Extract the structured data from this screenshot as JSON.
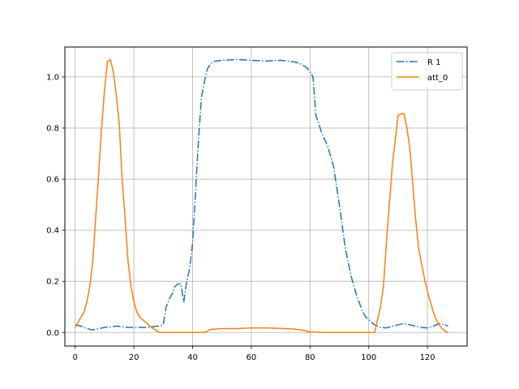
{
  "chart_data": {
    "type": "line",
    "title": "",
    "xlabel": "",
    "ylabel": "",
    "xlim": [
      -3.5,
      133.5
    ],
    "ylim": [
      -0.053,
      1.117
    ],
    "xticks": [
      0,
      20,
      40,
      60,
      80,
      100,
      120
    ],
    "xtick_labels": [
      "0",
      "20",
      "40",
      "60",
      "80",
      "100",
      "120"
    ],
    "yticks": [
      0.0,
      0.2,
      0.4,
      0.6,
      0.8,
      1.0
    ],
    "ytick_labels": [
      "0.0",
      "0.2",
      "0.4",
      "0.6",
      "0.8",
      "1.0"
    ],
    "grid": true,
    "legend_position": "top-right",
    "series": [
      {
        "name": "R 1",
        "color": "#1f77b4",
        "style": "dashdot",
        "x": [
          0,
          2,
          4,
          6,
          8,
          10,
          12,
          14,
          16,
          18,
          20,
          22,
          24,
          26,
          28,
          29,
          30,
          31,
          32,
          33,
          34,
          35,
          36,
          37,
          38,
          39,
          40,
          41,
          42,
          43,
          44,
          45,
          46,
          47,
          48,
          50,
          55,
          60,
          65,
          70,
          75,
          77,
          79,
          80,
          81,
          82,
          84,
          86,
          88,
          90,
          92,
          94,
          96,
          98,
          99,
          100,
          102,
          104,
          106,
          108,
          110,
          112,
          114,
          116,
          118,
          120,
          122,
          124,
          126,
          127
        ],
        "y": [
          0.03,
          0.025,
          0.015,
          0.01,
          0.015,
          0.02,
          0.022,
          0.025,
          0.023,
          0.02,
          0.02,
          0.02,
          0.02,
          0.022,
          0.025,
          0.025,
          0.03,
          0.1,
          0.13,
          0.15,
          0.18,
          0.19,
          0.19,
          0.12,
          0.2,
          0.25,
          0.35,
          0.55,
          0.75,
          0.92,
          0.98,
          1.03,
          1.05,
          1.06,
          1.062,
          1.065,
          1.068,
          1.065,
          1.062,
          1.065,
          1.058,
          1.05,
          1.035,
          1.02,
          1.0,
          0.85,
          0.78,
          0.73,
          0.65,
          0.5,
          0.33,
          0.22,
          0.14,
          0.08,
          0.06,
          0.05,
          0.03,
          0.02,
          0.018,
          0.025,
          0.03,
          0.035,
          0.03,
          0.025,
          0.02,
          0.018,
          0.025,
          0.035,
          0.03,
          0.025
        ]
      },
      {
        "name": "att_0",
        "color": "#ff7f0e",
        "style": "solid",
        "x": [
          0,
          1,
          2,
          3,
          4,
          5,
          6,
          7,
          8,
          9,
          10,
          11,
          12,
          13,
          14,
          15,
          16,
          17,
          18,
          19,
          20,
          21,
          22,
          24,
          26,
          28,
          29,
          30,
          35,
          40,
          44,
          45,
          46,
          50,
          55,
          60,
          65,
          70,
          75,
          78,
          80,
          85,
          90,
          95,
          100,
          102,
          103,
          104,
          105,
          106,
          107,
          108,
          109,
          110,
          111,
          112,
          113,
          114,
          115,
          116,
          117,
          118,
          119,
          120,
          121,
          122,
          123,
          124,
          125,
          126,
          127
        ],
        "y": [
          0.02,
          0.04,
          0.06,
          0.08,
          0.12,
          0.18,
          0.28,
          0.45,
          0.62,
          0.8,
          0.95,
          1.06,
          1.068,
          1.02,
          0.93,
          0.82,
          0.6,
          0.45,
          0.28,
          0.18,
          0.12,
          0.08,
          0.06,
          0.04,
          0.02,
          0.005,
          0.0,
          0.0,
          0.0,
          0.0,
          0.0,
          0.005,
          0.012,
          0.015,
          0.015,
          0.018,
          0.018,
          0.016,
          0.013,
          0.008,
          0.002,
          0.0,
          0.0,
          0.0,
          0.0,
          0.0,
          0.05,
          0.1,
          0.18,
          0.35,
          0.5,
          0.65,
          0.75,
          0.85,
          0.855,
          0.857,
          0.8,
          0.72,
          0.58,
          0.44,
          0.33,
          0.27,
          0.21,
          0.16,
          0.12,
          0.08,
          0.05,
          0.03,
          0.015,
          0.005,
          0.0
        ]
      }
    ]
  }
}
